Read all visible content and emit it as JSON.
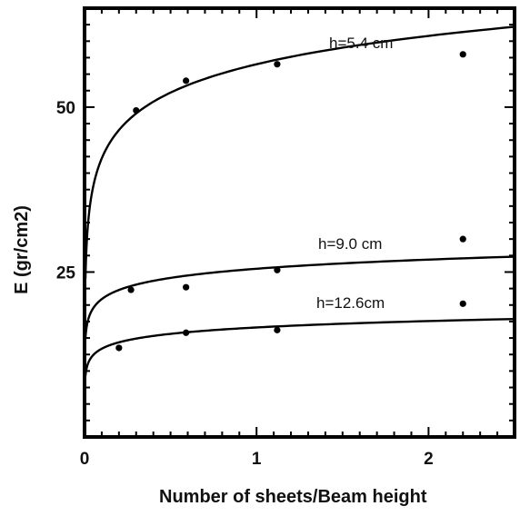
{
  "chart_data": {
    "type": "scatter",
    "title": "",
    "xlabel": "Number of sheets/Beam height",
    "ylabel": "E (gr/cm2)",
    "xlim": [
      0,
      2.5
    ],
    "ylim": [
      0,
      65
    ],
    "x_ticks": [
      0,
      1,
      2
    ],
    "y_ticks": [
      25,
      50
    ],
    "x_tick_labels": [
      "0",
      "1",
      "2"
    ],
    "y_tick_labels": [
      "25",
      "50"
    ],
    "grid": false,
    "legend": "none",
    "series": [
      {
        "name": "h=5.4 cm",
        "color": "#000000",
        "points": [
          {
            "x": 0.3,
            "y": 49.5
          },
          {
            "x": 0.59,
            "y": 54.0
          },
          {
            "x": 1.12,
            "y": 56.5
          },
          {
            "x": 2.2,
            "y": 58.0
          }
        ],
        "fit": {
          "a": 56.5,
          "b": 6.2
        }
      },
      {
        "name": "h=9.0 cm",
        "color": "#000000",
        "points": [
          {
            "x": 0.27,
            "y": 22.3
          },
          {
            "x": 0.59,
            "y": 22.7
          },
          {
            "x": 1.12,
            "y": 25.3
          },
          {
            "x": 2.2,
            "y": 30.0
          }
        ],
        "fit": {
          "a": 25.5,
          "b": 2.0
        }
      },
      {
        "name": "h=12.6cm",
        "color": "#000000",
        "points": [
          {
            "x": 0.2,
            "y": 13.5
          },
          {
            "x": 0.59,
            "y": 15.8
          },
          {
            "x": 1.12,
            "y": 16.2
          },
          {
            "x": 2.2,
            "y": 20.2
          }
        ],
        "fit": {
          "a": 16.6,
          "b": 1.4
        }
      }
    ]
  }
}
